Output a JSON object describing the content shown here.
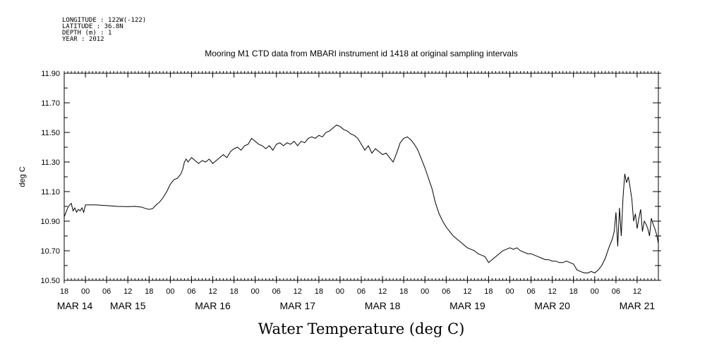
{
  "header": {
    "meta_lines": [
      "LONGITUDE : 122W(-122)",
      "LATITUDE : 36.8N",
      "DEPTH (m) : 1",
      "YEAR : 2012"
    ]
  },
  "chart_data": {
    "type": "line",
    "title": "Mooring M1 CTD data from MBARI instrument id 1418 at original sampling intervals",
    "xlabel": "Water Temperature (deg C)",
    "ylabel": "deg C",
    "x_unit": "hour-of-day labels, 6-hour ticks, days MAR 14 – MAR 21 2012",
    "xlim": [
      0,
      168
    ],
    "ylim": [
      10.5,
      11.9
    ],
    "y_ticks": [
      "10.50",
      "10.70",
      "10.90",
      "11.10",
      "11.30",
      "11.50",
      "11.70",
      "11.90"
    ],
    "x_tick_labels": [
      "18",
      "00",
      "06",
      "12",
      "18",
      "00",
      "06",
      "12",
      "18",
      "00",
      "06",
      "12",
      "18",
      "00",
      "06",
      "12",
      "18",
      "00",
      "06",
      "12",
      "18",
      "00",
      "06",
      "12",
      "18",
      "00",
      "06",
      "12"
    ],
    "day_labels": [
      "MAR 14",
      "MAR 15",
      "MAR 16",
      "MAR 17",
      "MAR 18",
      "MAR 19",
      "MAR 20",
      "MAR 21"
    ],
    "grid": false,
    "series": [
      {
        "points": [
          [
            0,
            10.93
          ],
          [
            0.5,
            10.96
          ],
          [
            1,
            10.99
          ],
          [
            1.5,
            11.01
          ],
          [
            2,
            11.02
          ],
          [
            2.5,
            10.97
          ],
          [
            3,
            10.99
          ],
          [
            3.5,
            10.96
          ],
          [
            4,
            10.98
          ],
          [
            4.5,
            10.97
          ],
          [
            5,
            10.99
          ],
          [
            5.5,
            10.96
          ],
          [
            6,
            11.01
          ],
          [
            7,
            11.01
          ],
          [
            9,
            11.01
          ],
          [
            12,
            11.005
          ],
          [
            15,
            11.0
          ],
          [
            18,
            10.998
          ],
          [
            20,
            11.0
          ],
          [
            22,
            10.995
          ],
          [
            23,
            10.985
          ],
          [
            24,
            10.98
          ],
          [
            25,
            10.985
          ],
          [
            26,
            11.01
          ],
          [
            27,
            11.03
          ],
          [
            28,
            11.06
          ],
          [
            29,
            11.1
          ],
          [
            30,
            11.15
          ],
          [
            31,
            11.18
          ],
          [
            32,
            11.19
          ],
          [
            33,
            11.22
          ],
          [
            33.5,
            11.25
          ],
          [
            34,
            11.3
          ],
          [
            34.5,
            11.32
          ],
          [
            35,
            11.3
          ],
          [
            36,
            11.33
          ],
          [
            37,
            11.31
          ],
          [
            38,
            11.29
          ],
          [
            39,
            11.31
          ],
          [
            40,
            11.3
          ],
          [
            41,
            11.32
          ],
          [
            42,
            11.29
          ],
          [
            43,
            11.31
          ],
          [
            44,
            11.33
          ],
          [
            45,
            11.35
          ],
          [
            46,
            11.33
          ],
          [
            47,
            11.37
          ],
          [
            48,
            11.39
          ],
          [
            49,
            11.4
          ],
          [
            50,
            11.38
          ],
          [
            51,
            11.41
          ],
          [
            52,
            11.42
          ],
          [
            53,
            11.46
          ],
          [
            54,
            11.44
          ],
          [
            55,
            11.42
          ],
          [
            56,
            11.41
          ],
          [
            57,
            11.39
          ],
          [
            58,
            11.41
          ],
          [
            59,
            11.38
          ],
          [
            60,
            11.42
          ],
          [
            61,
            11.43
          ],
          [
            62,
            11.41
          ],
          [
            63,
            11.43
          ],
          [
            64,
            11.42
          ],
          [
            65,
            11.44
          ],
          [
            66,
            11.41
          ],
          [
            67,
            11.44
          ],
          [
            68,
            11.43
          ],
          [
            69,
            11.46
          ],
          [
            70,
            11.47
          ],
          [
            71,
            11.46
          ],
          [
            72,
            11.48
          ],
          [
            73,
            11.47
          ],
          [
            74,
            11.5
          ],
          [
            75,
            11.51
          ],
          [
            76,
            11.53
          ],
          [
            77,
            11.55
          ],
          [
            78,
            11.54
          ],
          [
            79,
            11.52
          ],
          [
            80,
            11.51
          ],
          [
            81,
            11.49
          ],
          [
            82,
            11.48
          ],
          [
            83,
            11.46
          ],
          [
            84,
            11.42
          ],
          [
            85,
            11.38
          ],
          [
            86,
            11.41
          ],
          [
            87,
            11.36
          ],
          [
            88,
            11.39
          ],
          [
            89,
            11.37
          ],
          [
            90,
            11.35
          ],
          [
            91,
            11.36
          ],
          [
            92,
            11.33
          ],
          [
            93,
            11.3
          ],
          [
            94,
            11.36
          ],
          [
            95,
            11.43
          ],
          [
            96,
            11.46
          ],
          [
            97,
            11.47
          ],
          [
            98,
            11.45
          ],
          [
            99,
            11.42
          ],
          [
            100,
            11.38
          ],
          [
            101,
            11.32
          ],
          [
            102,
            11.26
          ],
          [
            103,
            11.19
          ],
          [
            104,
            11.12
          ],
          [
            105,
            11.02
          ],
          [
            106,
            10.95
          ],
          [
            107,
            10.9
          ],
          [
            108,
            10.86
          ],
          [
            109,
            10.83
          ],
          [
            110,
            10.8
          ],
          [
            111,
            10.78
          ],
          [
            112,
            10.76
          ],
          [
            113,
            10.74
          ],
          [
            114,
            10.72
          ],
          [
            115,
            10.71
          ],
          [
            116,
            10.7
          ],
          [
            117,
            10.68
          ],
          [
            118,
            10.67
          ],
          [
            119,
            10.66
          ],
          [
            120,
            10.62
          ],
          [
            121,
            10.64
          ],
          [
            122,
            10.66
          ],
          [
            123,
            10.68
          ],
          [
            124,
            10.7
          ],
          [
            125,
            10.71
          ],
          [
            126,
            10.72
          ],
          [
            127,
            10.71
          ],
          [
            128,
            10.72
          ],
          [
            129,
            10.7
          ],
          [
            130,
            10.69
          ],
          [
            131,
            10.68
          ],
          [
            132,
            10.68
          ],
          [
            133,
            10.67
          ],
          [
            134,
            10.66
          ],
          [
            135,
            10.65
          ],
          [
            136,
            10.64
          ],
          [
            137,
            10.64
          ],
          [
            138,
            10.63
          ],
          [
            139,
            10.63
          ],
          [
            140,
            10.62
          ],
          [
            141,
            10.62
          ],
          [
            142,
            10.63
          ],
          [
            143,
            10.62
          ],
          [
            144,
            10.61
          ],
          [
            145,
            10.57
          ],
          [
            146,
            10.56
          ],
          [
            147,
            10.55
          ],
          [
            148,
            10.55
          ],
          [
            149,
            10.56
          ],
          [
            150,
            10.55
          ],
          [
            151,
            10.57
          ],
          [
            152,
            10.6
          ],
          [
            153,
            10.65
          ],
          [
            154,
            10.72
          ],
          [
            155,
            10.78
          ],
          [
            155.5,
            10.83
          ],
          [
            156,
            10.96
          ],
          [
            156.5,
            10.73
          ],
          [
            157,
            10.99
          ],
          [
            157.5,
            10.8
          ],
          [
            158,
            11.06
          ],
          [
            158.5,
            11.22
          ],
          [
            159,
            11.16
          ],
          [
            159.5,
            11.2
          ],
          [
            160,
            11.13
          ],
          [
            160.5,
            11.05
          ],
          [
            161,
            10.9
          ],
          [
            161.5,
            10.95
          ],
          [
            162,
            10.85
          ],
          [
            162.5,
            10.92
          ],
          [
            163,
            10.98
          ],
          [
            163.5,
            10.83
          ],
          [
            164,
            10.9
          ],
          [
            164.5,
            10.88
          ],
          [
            165,
            10.85
          ],
          [
            165.5,
            10.8
          ],
          [
            166,
            10.92
          ],
          [
            166.5,
            10.88
          ],
          [
            167,
            10.85
          ],
          [
            167.5,
            10.81
          ],
          [
            168,
            10.75
          ]
        ]
      }
    ]
  }
}
